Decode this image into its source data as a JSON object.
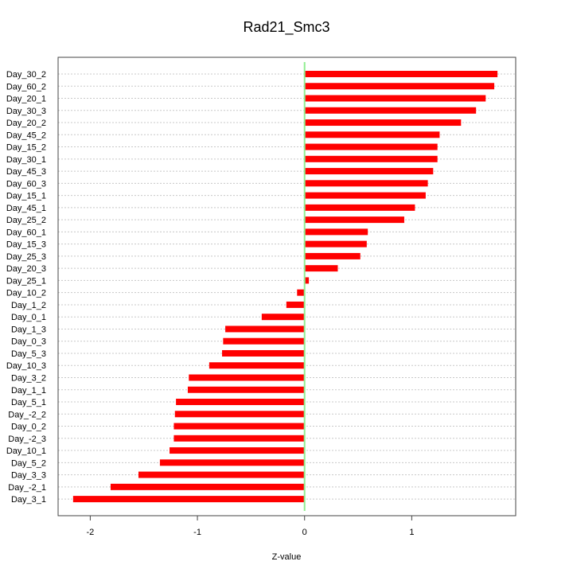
{
  "chart_data": {
    "type": "bar",
    "orientation": "horizontal",
    "title": "Rad21_Smc3",
    "xlabel": "Z-value",
    "ylabel": "",
    "xlim": [
      -2.3,
      1.97
    ],
    "xticks": [
      -2,
      -1,
      0,
      1
    ],
    "grid": "horizontal-dotted",
    "colors": {
      "bar": "#ff0000",
      "zero_line": "#90ee90",
      "grid": "#c8c8c8",
      "frame": "#444444"
    },
    "categories": [
      "Day_30_2",
      "Day_60_2",
      "Day_20_1",
      "Day_30_3",
      "Day_20_2",
      "Day_45_2",
      "Day_15_2",
      "Day_30_1",
      "Day_45_3",
      "Day_60_3",
      "Day_15_1",
      "Day_45_1",
      "Day_25_2",
      "Day_60_1",
      "Day_15_3",
      "Day_25_3",
      "Day_20_3",
      "Day_25_1",
      "Day_10_2",
      "Day_1_2",
      "Day_0_1",
      "Day_1_3",
      "Day_0_3",
      "Day_5_3",
      "Day_10_3",
      "Day_3_2",
      "Day_1_1",
      "Day_5_1",
      "Day_-2_2",
      "Day_0_2",
      "Day_-2_3",
      "Day_10_1",
      "Day_5_2",
      "Day_3_3",
      "Day_-2_1",
      "Day_3_1"
    ],
    "values": [
      1.8,
      1.77,
      1.69,
      1.6,
      1.46,
      1.26,
      1.24,
      1.24,
      1.2,
      1.15,
      1.13,
      1.03,
      0.93,
      0.59,
      0.58,
      0.52,
      0.31,
      0.04,
      -0.07,
      -0.17,
      -0.4,
      -0.74,
      -0.76,
      -0.77,
      -0.89,
      -1.08,
      -1.09,
      -1.2,
      -1.21,
      -1.22,
      -1.22,
      -1.26,
      -1.35,
      -1.55,
      -1.81,
      -2.16
    ]
  }
}
